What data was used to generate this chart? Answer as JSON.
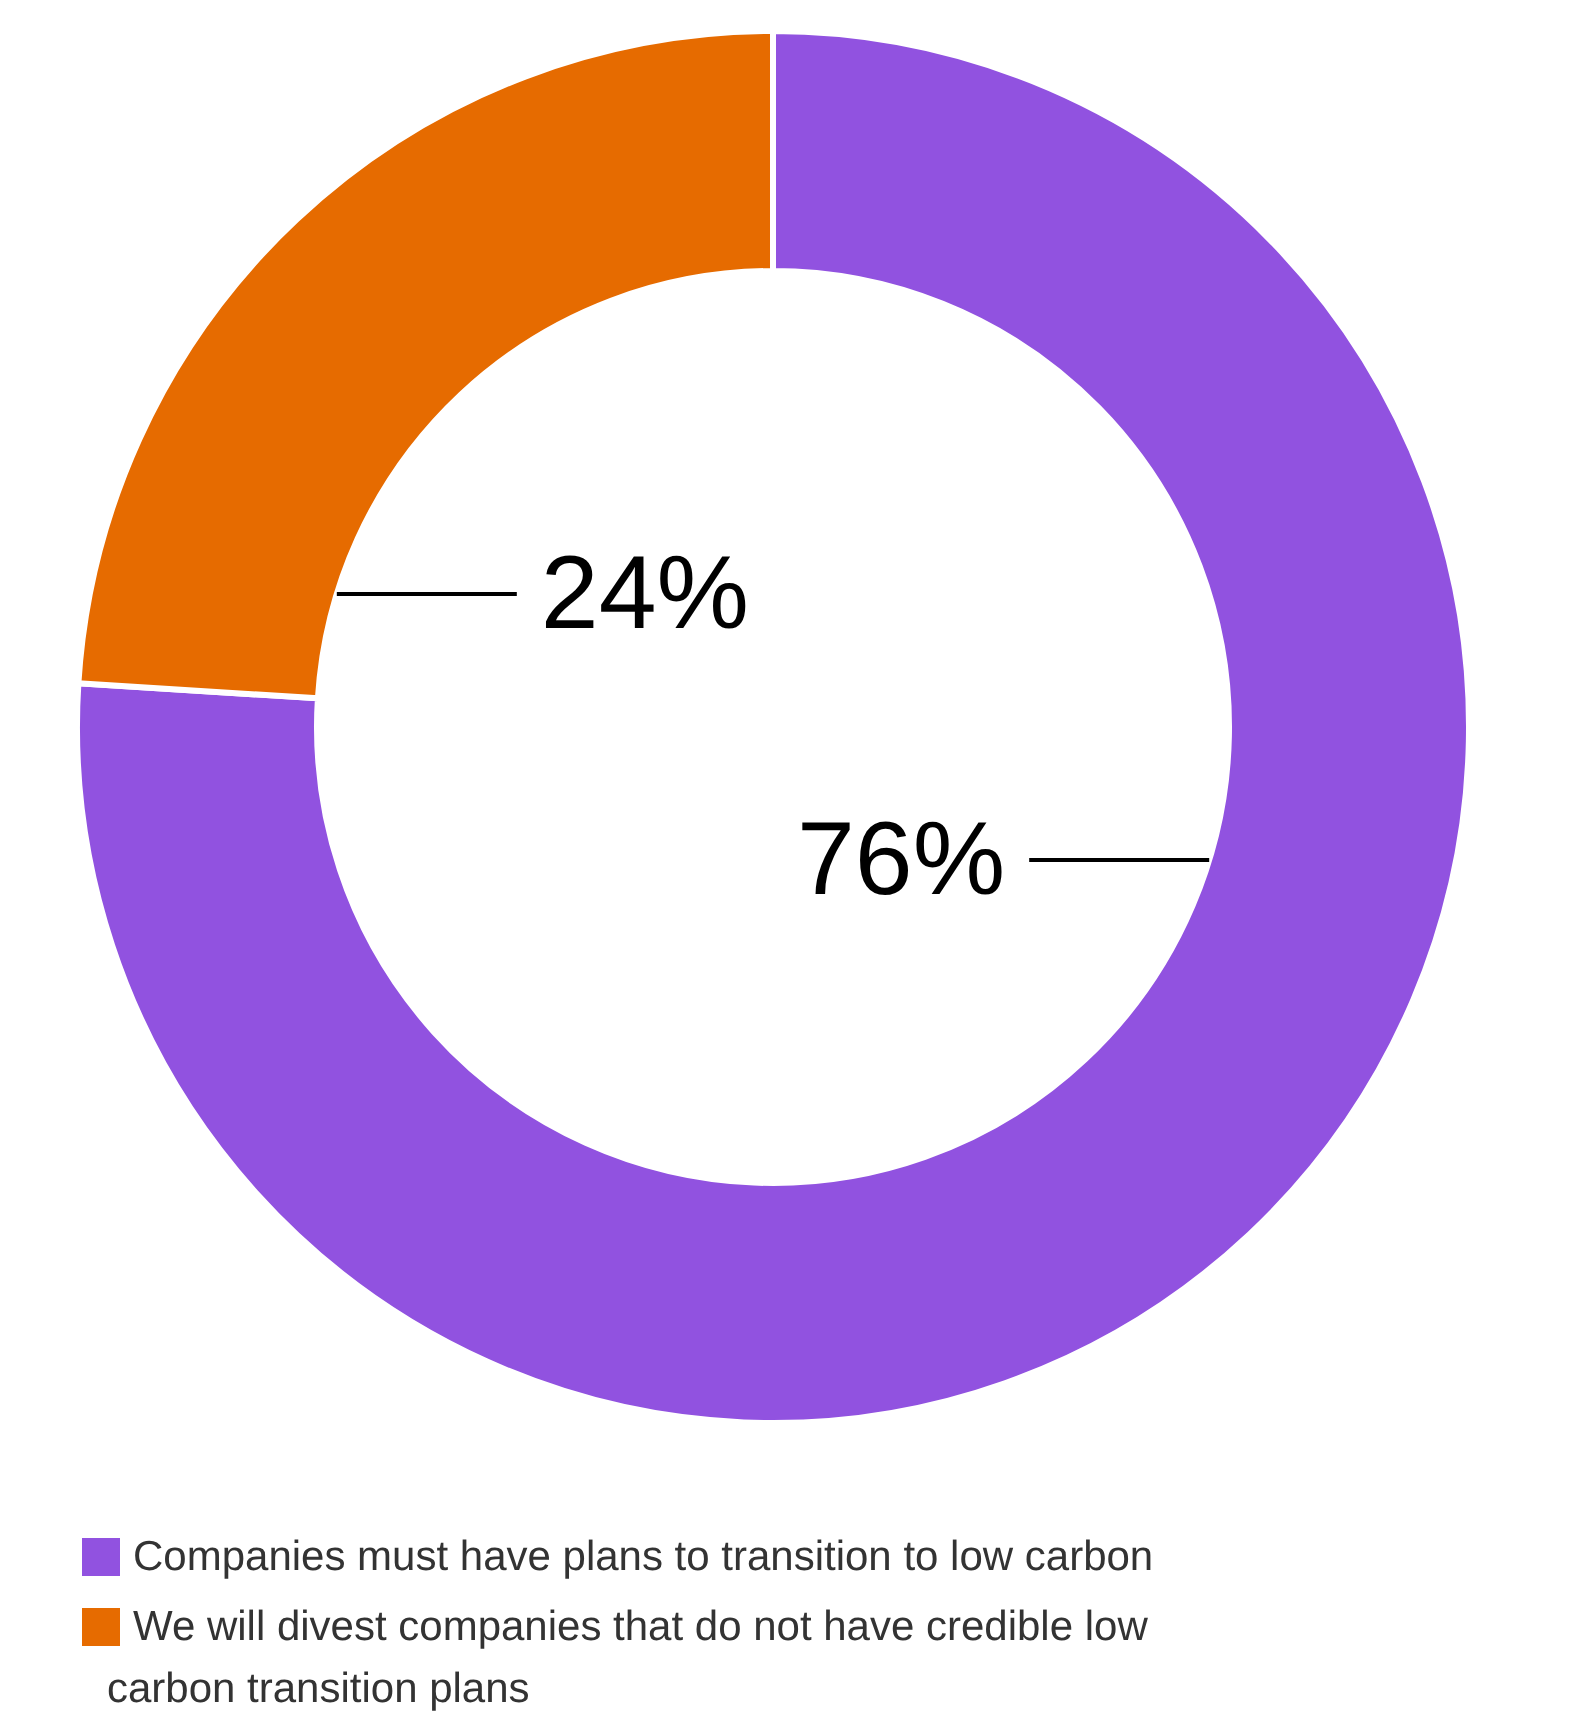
{
  "chart_data": {
    "type": "donut",
    "categories": [
      "Companies must have plans to transition to low carbon",
      "We will divest companies that do not have credible low carbon transition plans"
    ],
    "values": [
      76,
      24
    ],
    "colors": [
      "#9152e0",
      "#e66b00"
    ],
    "value_labels": [
      "76%",
      "24%"
    ],
    "legend": "bottom"
  }
}
